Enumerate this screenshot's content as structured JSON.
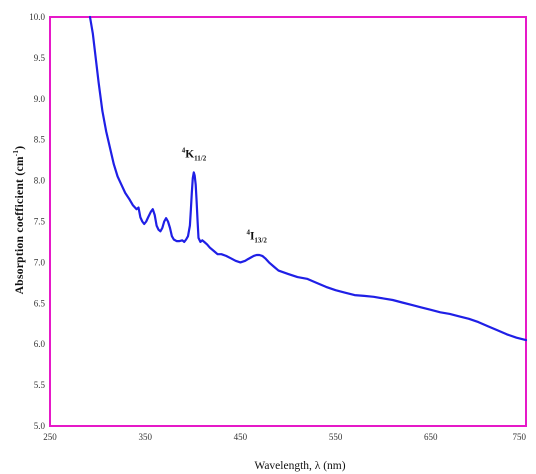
{
  "chart_data": {
    "type": "line",
    "title": "",
    "xlabel": "Wavelength, λ (nm)",
    "ylabel": "Absorption coefficient  (cm",
    "ylabel_sup": "-1",
    "ylabel_close": ")",
    "xlim": [
      250,
      750
    ],
    "ylim": [
      5.0,
      10.0
    ],
    "x_ticks": [
      250,
      350,
      450,
      550,
      650,
      750
    ],
    "y_ticks": [
      "5.0",
      "5.5",
      "6.0",
      "6.5",
      "7.0",
      "7.5",
      "8.0",
      "8.5",
      "9.0",
      "9.5",
      "10.0"
    ],
    "grid": false,
    "colors": {
      "frame": "#e619c8",
      "line": "#1f1fe6"
    },
    "annotations": [
      {
        "id": "k112",
        "sup": "4",
        "main": "K",
        "sub": "11/2",
        "x": 402,
        "y": 8.28
      },
      {
        "id": "i132",
        "sup": "4",
        "main": "I",
        "sub": "13/2",
        "x": 470,
        "y": 7.28
      }
    ],
    "series": [
      {
        "x": [
          292,
          295,
          298,
          301,
          305,
          309,
          313,
          317,
          321,
          325,
          329,
          333,
          337,
          341,
          343,
          345,
          347,
          349,
          351,
          353,
          356,
          358,
          360,
          362,
          364,
          366,
          368,
          370,
          372,
          374,
          376,
          378,
          380,
          383,
          386,
          389,
          391,
          393,
          395,
          397,
          398,
          399,
          400,
          401,
          402,
          403,
          404,
          405,
          406,
          408,
          410,
          412,
          415,
          418,
          422,
          426,
          430,
          435,
          440,
          445,
          450,
          455,
          458,
          461,
          464,
          467,
          470,
          473,
          476,
          480,
          485,
          490,
          500,
          510,
          520,
          530,
          540,
          550,
          560,
          570,
          580,
          590,
          600,
          610,
          620,
          630,
          640,
          650,
          660,
          670,
          680,
          690,
          700,
          710,
          720,
          730,
          740,
          750
        ],
        "y": [
          10.0,
          9.8,
          9.5,
          9.2,
          8.85,
          8.6,
          8.4,
          8.2,
          8.05,
          7.95,
          7.85,
          7.78,
          7.7,
          7.65,
          7.67,
          7.55,
          7.5,
          7.47,
          7.5,
          7.55,
          7.62,
          7.65,
          7.58,
          7.45,
          7.4,
          7.38,
          7.42,
          7.5,
          7.54,
          7.5,
          7.42,
          7.32,
          7.28,
          7.26,
          7.26,
          7.27,
          7.25,
          7.28,
          7.32,
          7.45,
          7.65,
          7.85,
          8.03,
          8.1,
          8.06,
          7.95,
          7.75,
          7.5,
          7.3,
          7.25,
          7.27,
          7.25,
          7.22,
          7.18,
          7.14,
          7.1,
          7.1,
          7.08,
          7.05,
          7.02,
          7.0,
          7.02,
          7.04,
          7.06,
          7.08,
          7.09,
          7.09,
          7.08,
          7.05,
          7.0,
          6.95,
          6.9,
          6.86,
          6.82,
          6.8,
          6.75,
          6.7,
          6.66,
          6.63,
          6.6,
          6.59,
          6.58,
          6.56,
          6.54,
          6.51,
          6.48,
          6.45,
          6.42,
          6.39,
          6.37,
          6.34,
          6.31,
          6.27,
          6.22,
          6.17,
          6.12,
          6.08,
          6.05
        ]
      }
    ]
  }
}
